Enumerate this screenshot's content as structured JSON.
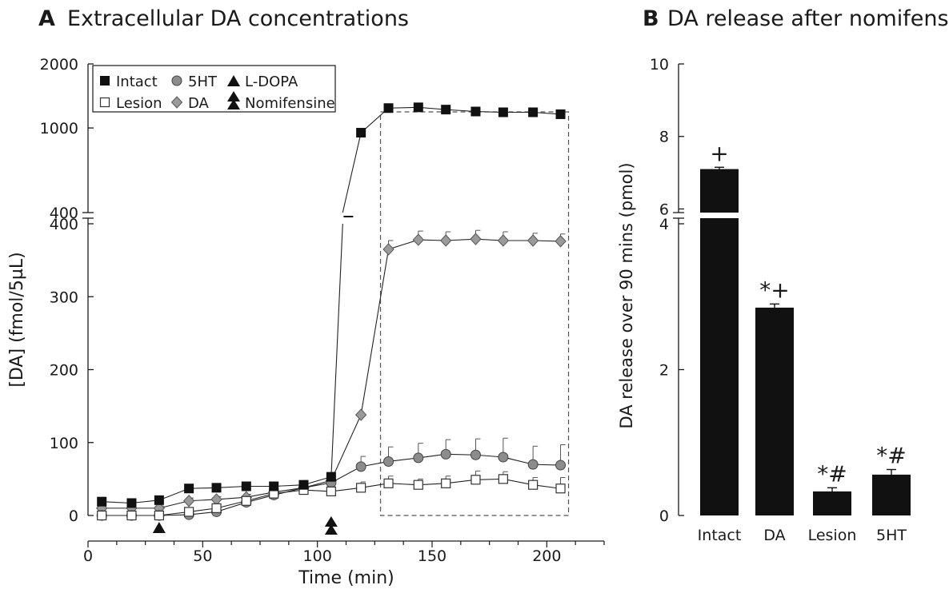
{
  "chart_data": [
    {
      "panel_letter": "A",
      "title": "Extracellular DA concentrations",
      "type": "line",
      "xlabel": "Time (min)",
      "ylabel": "[DA] (fmol/5µL)",
      "xlim": [
        0,
        225
      ],
      "xticks": [
        "0",
        "50",
        "100",
        "150",
        "200"
      ],
      "yaxis_upper": {
        "ticks": [
          "400",
          "1000",
          "2000"
        ],
        "range": [
          400,
          2000
        ],
        "scale": "log"
      },
      "yaxis_lower": {
        "ticks": [
          "0",
          "100",
          "200",
          "300",
          "400"
        ],
        "range": [
          0,
          400
        ]
      },
      "x": [
        6,
        19,
        31,
        44,
        56,
        69,
        81,
        94,
        106,
        119,
        131,
        144,
        156,
        169,
        181,
        194,
        206
      ],
      "series": [
        {
          "name": "Intact",
          "marker": "filled-square",
          "color": "#111111",
          "values": [
            19,
            17,
            21,
            37,
            38,
            40,
            40,
            42,
            53,
            950,
            1240,
            1250,
            1220,
            1195,
            1185,
            1185,
            1160
          ],
          "errors": [
            3,
            3,
            4,
            5,
            5,
            6,
            6,
            6,
            6,
            20,
            20,
            20,
            20,
            20,
            30,
            30,
            30
          ]
        },
        {
          "name": "Lesion",
          "marker": "open-square",
          "color": "#111111",
          "values": [
            0,
            0,
            0,
            5,
            10,
            20,
            30,
            35,
            33,
            38,
            44,
            42,
            44,
            49,
            50,
            42,
            37
          ],
          "errors": [
            2,
            2,
            2,
            3,
            4,
            4,
            4,
            4,
            5,
            8,
            10,
            8,
            10,
            12,
            10,
            10,
            15
          ]
        },
        {
          "name": "5HT",
          "marker": "filled-circle",
          "color": "#8a8a8a",
          "values": [
            0,
            0,
            0,
            1,
            5,
            18,
            28,
            38,
            45,
            67,
            74,
            79,
            84,
            83,
            80,
            70,
            69
          ],
          "errors": [
            2,
            2,
            2,
            3,
            3,
            3,
            4,
            4,
            5,
            14,
            20,
            20,
            20,
            22,
            26,
            25,
            28
          ]
        },
        {
          "name": "DA",
          "marker": "gray-diamond",
          "color": "#8a8a8a",
          "values": [
            10,
            10,
            10,
            20,
            22,
            25,
            32,
            38,
            48,
            138,
            365,
            378,
            377,
            379,
            377,
            377,
            376
          ],
          "errors": [
            3,
            3,
            3,
            4,
            4,
            4,
            5,
            5,
            6,
            0,
            12,
            12,
            12,
            12,
            12,
            10,
            10
          ]
        }
      ],
      "treatments": [
        {
          "name": "L-DOPA",
          "marker": "single-triangle",
          "time": 31
        },
        {
          "name": "Nomifensine",
          "marker": "double-triangle",
          "time": 106
        }
      ],
      "legend": {
        "position": "top-left",
        "entries": [
          {
            "label": "Intact",
            "marker": "filled-square"
          },
          {
            "label": "5HT",
            "marker": "filled-circle"
          },
          {
            "label": "L-DOPA",
            "marker": "single-triangle"
          },
          {
            "label": "Lesion",
            "marker": "open-square"
          },
          {
            "label": "DA",
            "marker": "gray-diamond"
          },
          {
            "label": "Nomifensine",
            "marker": "double-triangle"
          }
        ]
      },
      "highlight_window": {
        "x": [
          131,
          206
        ],
        "style": "dashed"
      }
    },
    {
      "panel_letter": "B",
      "title": "DA release after nomifensine",
      "type": "bar",
      "ylabel": "DA release over 90 mins  (pmol)",
      "categories": [
        "Intact",
        "DA",
        "Lesion",
        "5HT"
      ],
      "values": [
        7.1,
        2.85,
        0.33,
        0.56
      ],
      "errors": [
        0.05,
        0.05,
        0.05,
        0.07
      ],
      "significance": [
        "+",
        "*+",
        "*#",
        "*#"
      ],
      "yaxis_upper": {
        "ticks": [
          "6",
          "8",
          "10"
        ],
        "range": [
          5.9,
          10
        ]
      },
      "yaxis_lower": {
        "ticks": [
          "0",
          "2",
          "4"
        ],
        "range": [
          0,
          4
        ]
      },
      "bar_color": "#111111"
    }
  ]
}
